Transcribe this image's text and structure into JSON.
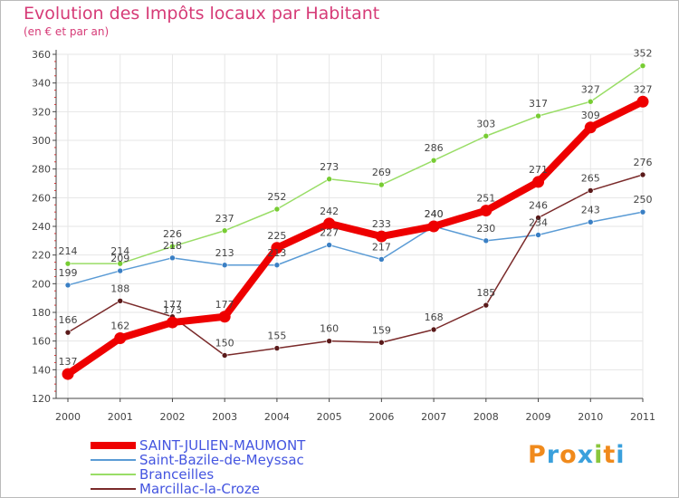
{
  "header": {
    "title": "Evolution des Impôts locaux par Habitant",
    "subtitle": "(en € et par an)"
  },
  "colors": {
    "title": "#d63b77",
    "axis": "#444444",
    "grid": "#e6e6e6",
    "label": "#444444"
  },
  "logo": {
    "text": "Proxiti",
    "letter_colors": [
      "#f08a1c",
      "#3aa0dc",
      "#f08a1c",
      "#3aa0dc",
      "#8ac63c",
      "#f08a1c",
      "#3aa0dc"
    ]
  },
  "chart_data": {
    "type": "line",
    "title": "Evolution des Impôts locaux par Habitant",
    "subtitle": "(en € et par an)",
    "xlabel": "",
    "ylabel": "",
    "x": [
      "2000",
      "2001",
      "2002",
      "2003",
      "2004",
      "2005",
      "2006",
      "2007",
      "2008",
      "2009",
      "2010",
      "2011"
    ],
    "ylim": [
      120,
      360
    ],
    "yticks": [
      120,
      140,
      160,
      180,
      200,
      220,
      240,
      260,
      280,
      300,
      320,
      340,
      360
    ],
    "grid": true,
    "legend_position": "bottom-left",
    "series": [
      {
        "name": "SAINT-JULIEN-MAUMONT",
        "color": "#ee0000",
        "emphasis": true,
        "values": [
          137,
          162,
          173,
          177,
          225,
          242,
          233,
          240,
          251,
          271,
          309,
          327
        ]
      },
      {
        "name": "Saint-Bazile-de-Meyssac",
        "color": "#5a9bd5",
        "marker_color": "#3a7fc4",
        "emphasis": false,
        "values": [
          199,
          209,
          218,
          213,
          213,
          227,
          217,
          240,
          230,
          234,
          243,
          250
        ]
      },
      {
        "name": "Branceilles",
        "color": "#99dd66",
        "marker_color": "#77cc33",
        "emphasis": false,
        "values": [
          214,
          214,
          226,
          237,
          252,
          273,
          269,
          286,
          303,
          317,
          327,
          352
        ]
      },
      {
        "name": "Marcillac-la-Croze",
        "color": "#7a2a2a",
        "marker_color": "#5a1a1a",
        "emphasis": false,
        "values": [
          166,
          188,
          177,
          150,
          155,
          160,
          159,
          168,
          185,
          246,
          265,
          276
        ]
      }
    ]
  }
}
